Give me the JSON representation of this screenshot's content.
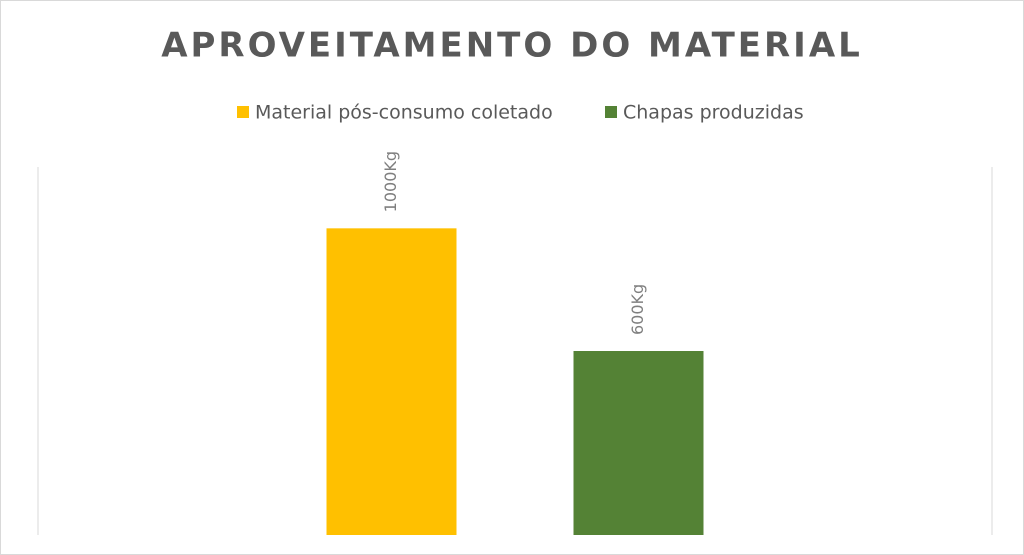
{
  "chart_data": {
    "type": "bar",
    "title": "APROVEITAMENTO DO MATERIAL",
    "categories": [
      null
    ],
    "series": [
      {
        "name": "Material pós-consumo coletado",
        "color": "#ffc000",
        "values": [
          1000
        ],
        "value_labels": [
          "1000Kg"
        ]
      },
      {
        "name": "Chapas produzidas",
        "color": "#548235",
        "values": [
          600
        ],
        "value_labels": [
          "600Kg"
        ]
      }
    ],
    "ylim": [
      0,
      1200
    ],
    "legend": "top"
  }
}
